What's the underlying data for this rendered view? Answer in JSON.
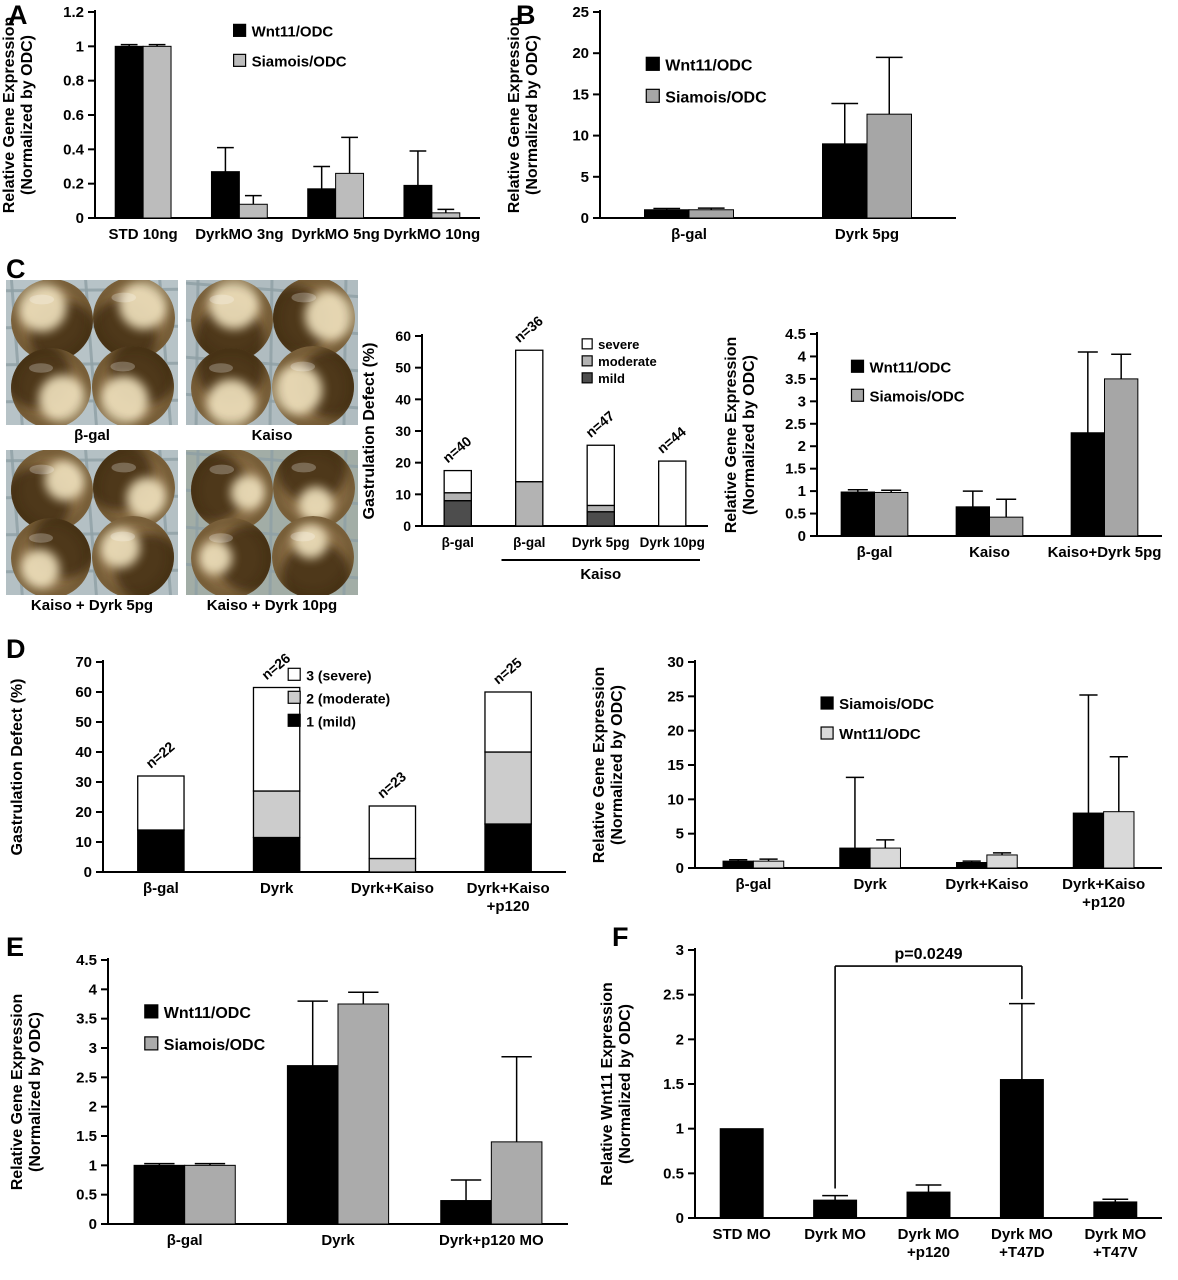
{
  "panels": {
    "a": "A",
    "b": "B",
    "c": "C",
    "d": "D",
    "e": "E",
    "f": "F"
  },
  "photos": {
    "items": [
      {
        "label": "β-gal"
      },
      {
        "label": "Kaiso"
      },
      {
        "label": "Kaiso + Dyrk 5pg"
      },
      {
        "label": "Kaiso + Dyrk 10pg"
      }
    ]
  },
  "chart_data": [
    {
      "id": "chartA",
      "type": "bar",
      "ylabel_lines": [
        "Relative Gene Expression",
        "(Normalized by ODC)"
      ],
      "ylim": [
        0,
        1.2
      ],
      "yticks": [
        0,
        0.2,
        0.4,
        0.6,
        0.8,
        1,
        1.2
      ],
      "categories": [
        "STD 10ng",
        "DyrkMO 3ng",
        "DyrkMO 5ng",
        "DyrkMO 10ng"
      ],
      "series": [
        {
          "name": "Wnt11/ODC",
          "color": "#000000",
          "values": [
            1.0,
            0.27,
            0.17,
            0.19
          ],
          "errors": [
            0.01,
            0.14,
            0.13,
            0.2
          ]
        },
        {
          "name": "Siamois/ODC",
          "color": "#bcbcbc",
          "values": [
            1.0,
            0.08,
            0.26,
            0.03
          ],
          "errors": [
            0.01,
            0.05,
            0.21,
            0.02
          ]
        }
      ],
      "legend": {
        "x": 0.36,
        "y": 0.06,
        "items": [
          {
            "label": "Wnt11/ODC",
            "color": "#000000"
          },
          {
            "label": "Siamois/ODC",
            "color": "#bcbcbc"
          }
        ]
      }
    },
    {
      "id": "chartB",
      "type": "bar",
      "ylabel_lines": [
        "Relative Gene Expression",
        "(Normalized by ODC)"
      ],
      "ylim": [
        0,
        25
      ],
      "yticks": [
        0,
        5,
        10,
        15,
        20,
        25
      ],
      "categories": [
        "β-gal",
        "Dyrk 5pg"
      ],
      "series": [
        {
          "name": "Wnt11/ODC",
          "color": "#000000",
          "values": [
            1.0,
            9.0
          ],
          "errors": [
            0.15,
            4.9
          ]
        },
        {
          "name": "Siamois/ODC",
          "color": "#a6a6a6",
          "values": [
            1.0,
            12.6
          ],
          "errors": [
            0.2,
            6.9
          ]
        }
      ],
      "legend": {
        "x": 0.13,
        "y": 0.22,
        "items": [
          {
            "label": "Wnt11/ODC",
            "color": "#000000"
          },
          {
            "label": "Siamois/ODC",
            "color": "#a6a6a6"
          }
        ]
      }
    },
    {
      "id": "chartC1",
      "type": "stacked_bar",
      "ylabel_lines": [
        "Gastrulation Defect (%)"
      ],
      "ylim": [
        0,
        60
      ],
      "yticks": [
        0,
        10,
        20,
        30,
        40,
        50,
        60
      ],
      "categories": [
        "β-gal",
        "β-gal",
        "Dyrk 5pg",
        "Dyrk 10pg"
      ],
      "n_labels": [
        "n=40",
        "n=36",
        "n=47",
        "n=44"
      ],
      "stack_series": [
        {
          "name": "mild",
          "color": "#4d4d4d",
          "values": [
            8,
            0,
            4.5,
            0
          ]
        },
        {
          "name": "moderate",
          "color": "#b3b3b3",
          "values": [
            2.5,
            14,
            2,
            0
          ]
        },
        {
          "name": "severe",
          "color": "#ffffff",
          "values": [
            7,
            41.5,
            19,
            20.5
          ]
        }
      ],
      "legend": {
        "x": 0.56,
        "y": 0.015,
        "items": [
          {
            "label": "severe",
            "color": "#ffffff"
          },
          {
            "label": "moderate",
            "color": "#b3b3b3"
          },
          {
            "label": "mild",
            "color": "#4d4d4d"
          }
        ]
      },
      "group_bracket": {
        "from": 1,
        "to": 3,
        "label": "Kaiso"
      }
    },
    {
      "id": "chartC2",
      "type": "bar",
      "ylabel_lines": [
        "Relative Gene Expression",
        "(Normalized by ODC)"
      ],
      "ylim": [
        0,
        4.5
      ],
      "yticks": [
        0,
        0.5,
        1,
        1.5,
        2,
        2.5,
        3,
        3.5,
        4,
        4.5
      ],
      "categories": [
        "β-gal",
        "Kaiso",
        "Kaiso+Dyrk 5pg"
      ],
      "series": [
        {
          "name": "Wnt11/ODC",
          "color": "#000000",
          "values": [
            0.98,
            0.65,
            2.3
          ],
          "errors": [
            0.05,
            0.35,
            1.8
          ]
        },
        {
          "name": "Siamois/ODC",
          "color": "#a6a6a6",
          "values": [
            0.97,
            0.42,
            3.5
          ],
          "errors": [
            0.05,
            0.4,
            0.55
          ]
        }
      ],
      "legend": {
        "x": 0.1,
        "y": 0.13,
        "items": [
          {
            "label": "Wnt11/ODC",
            "color": "#000000"
          },
          {
            "label": "Siamois/ODC",
            "color": "#a6a6a6"
          }
        ]
      }
    },
    {
      "id": "chartD1",
      "type": "stacked_bar",
      "ylabel_lines": [
        "Gastrulation Defect (%)"
      ],
      "ylim": [
        0,
        70
      ],
      "yticks": [
        0,
        10,
        20,
        30,
        40,
        50,
        60,
        70
      ],
      "categories": [
        "β-gal",
        "Dyrk",
        "Dyrk+Kaiso",
        [
          "Dyrk+Kaiso",
          "+p120"
        ]
      ],
      "n_labels": [
        "n=22",
        "n=26",
        "n=23",
        "n=25"
      ],
      "stack_series": [
        {
          "name": "1 (mild)",
          "color": "#000000",
          "values": [
            14,
            11.5,
            0,
            16
          ]
        },
        {
          "name": "2 (moderate)",
          "color": "#cccccc",
          "values": [
            0,
            15.5,
            4.5,
            24
          ]
        },
        {
          "name": "3 (severe)",
          "color": "#ffffff",
          "values": [
            18,
            34.5,
            17.5,
            20
          ]
        }
      ],
      "legend": {
        "x": 0.4,
        "y": 0.03,
        "items": [
          {
            "label": "3 (severe)",
            "color": "#ffffff"
          },
          {
            "label": "2 (moderate)",
            "color": "#cccccc"
          },
          {
            "label": "1 (mild)",
            "color": "#000000"
          }
        ]
      }
    },
    {
      "id": "chartD2",
      "type": "bar",
      "ylabel_lines": [
        "Relative Gene Expression",
        "(Normalized by ODC)"
      ],
      "ylim": [
        0,
        30
      ],
      "yticks": [
        0,
        5,
        10,
        15,
        20,
        25,
        30
      ],
      "categories": [
        "β-gal",
        "Dyrk",
        "Dyrk+Kaiso",
        [
          "Dyrk+Kaiso",
          "+p120"
        ]
      ],
      "series": [
        {
          "name": "Siamois/ODC",
          "color": "#000000",
          "values": [
            1.0,
            2.9,
            0.8,
            8.0
          ],
          "errors": [
            0.2,
            10.3,
            0.2,
            17.2
          ]
        },
        {
          "name": "Wnt11/ODC",
          "color": "#d9d9d9",
          "values": [
            1.0,
            2.9,
            1.9,
            8.2
          ],
          "errors": [
            0.3,
            1.2,
            0.3,
            8.0
          ]
        }
      ],
      "legend": {
        "x": 0.27,
        "y": 0.17,
        "items": [
          {
            "label": "Siamois/ODC",
            "color": "#000000"
          },
          {
            "label": "Wnt11/ODC",
            "color": "#d9d9d9"
          }
        ]
      }
    },
    {
      "id": "chartE",
      "type": "bar",
      "ylabel_lines": [
        "Relative Gene Expression",
        "(Normalized by ODC)"
      ],
      "ylim": [
        0,
        4.5
      ],
      "yticks": [
        0,
        0.5,
        1,
        1.5,
        2,
        2.5,
        3,
        3.5,
        4,
        4.5
      ],
      "categories": [
        "β-gal",
        "Dyrk",
        "Dyrk+p120 MO"
      ],
      "series": [
        {
          "name": "Wnt11/ODC",
          "color": "#000000",
          "values": [
            1.0,
            2.7,
            0.4
          ],
          "errors": [
            0.03,
            1.1,
            0.35
          ]
        },
        {
          "name": "Siamois/ODC",
          "color": "#ababab",
          "values": [
            1.0,
            3.75,
            1.4
          ],
          "errors": [
            0.03,
            0.2,
            1.45
          ]
        }
      ],
      "legend": {
        "x": 0.08,
        "y": 0.17,
        "items": [
          {
            "label": "Wnt11/ODC",
            "color": "#000000"
          },
          {
            "label": "Siamois/ODC",
            "color": "#ababab"
          }
        ]
      }
    },
    {
      "id": "chartF",
      "type": "bar",
      "ylabel_lines": [
        "Relative Wnt11 Expression",
        "(Normalized by ODC)"
      ],
      "ylim": [
        0,
        3
      ],
      "yticks": [
        0,
        0.5,
        1,
        1.5,
        2,
        2.5,
        3
      ],
      "categories": [
        "STD MO",
        "Dyrk MO",
        [
          "Dyrk MO",
          "+p120"
        ],
        [
          "Dyrk MO",
          "+T47D"
        ],
        [
          "Dyrk MO",
          "+T47V"
        ]
      ],
      "series": [
        {
          "name": "Wnt11",
          "color": "#000000",
          "values": [
            1.0,
            0.2,
            0.29,
            1.55,
            0.18
          ],
          "errors": [
            0,
            0.05,
            0.08,
            0.85,
            0.03
          ]
        }
      ],
      "significance": {
        "from": 1,
        "to": 3,
        "label": "p=0.0249",
        "bar_y": 2.82,
        "left_down_to": 0.33,
        "right_down_to": 2.45
      }
    }
  ]
}
